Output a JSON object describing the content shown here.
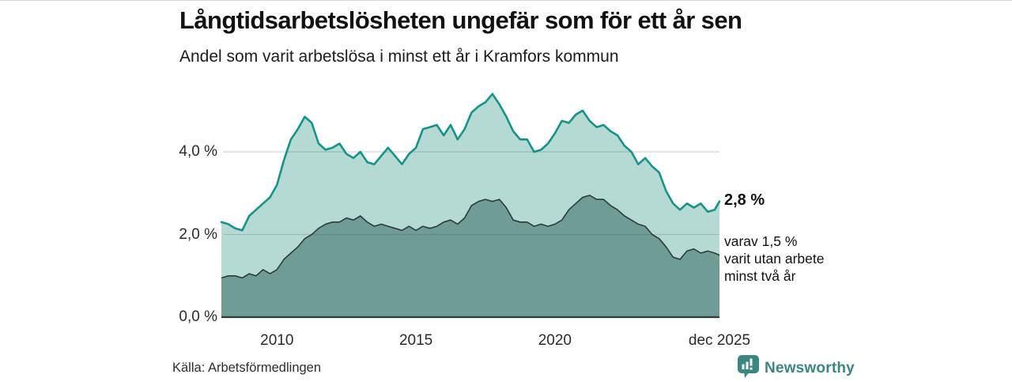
{
  "footer": {
    "source": "Källa: Arbetsförmedlingen",
    "brand": "Newsworthy"
  },
  "colors": {
    "accent_teal": "#149489",
    "light_fill": "#b5dad4",
    "dark_fill": "#6f9d96",
    "dark_line": "#2f3b3a",
    "brand_teal": "#3a8680",
    "gridline": "rgba(70,70,70,0.22)"
  },
  "chart_data": {
    "type": "area",
    "title": "Långtidsarbetslösheten ungefär som för ett år sen",
    "subtitle": "Andel som varit arbetslösa i minst ett år i Kramfors kommun",
    "unit": "%",
    "grid": "horizontal",
    "legend_position": "none",
    "annotations": {
      "latest_total": "2,8 %",
      "latest_secondary": [
        "varav 1,5 %",
        "varit utan arbete",
        "minst två år"
      ]
    },
    "x_axis": {
      "start": 2008.0,
      "end": 2025.92,
      "ticks": [
        {
          "label": "2010",
          "year": 2010
        },
        {
          "label": "2015",
          "year": 2015
        },
        {
          "label": "2020",
          "year": 2020
        },
        {
          "label": "dec 2025",
          "year": 2025.92
        }
      ]
    },
    "y_axis": {
      "ticks": [
        {
          "label": "0,0 %",
          "value": 0
        },
        {
          "label": "2,0 %",
          "value": 2
        },
        {
          "label": "4,0 %",
          "value": 4
        }
      ],
      "range": [
        0,
        5.6
      ]
    },
    "series": [
      {
        "name": "Andel arbetslösa minst ett år",
        "color": "#149489",
        "fill": "#b5dad4",
        "latest_value": 2.8,
        "points": [
          [
            2008.0,
            2.3
          ],
          [
            2008.25,
            2.25
          ],
          [
            2008.5,
            2.15
          ],
          [
            2008.75,
            2.1
          ],
          [
            2009.0,
            2.45
          ],
          [
            2009.25,
            2.6
          ],
          [
            2009.5,
            2.75
          ],
          [
            2009.75,
            2.9
          ],
          [
            2010.0,
            3.2
          ],
          [
            2010.25,
            3.8
          ],
          [
            2010.5,
            4.3
          ],
          [
            2010.75,
            4.55
          ],
          [
            2011.0,
            4.85
          ],
          [
            2011.25,
            4.7
          ],
          [
            2011.5,
            4.2
          ],
          [
            2011.75,
            4.05
          ],
          [
            2012.0,
            4.1
          ],
          [
            2012.25,
            4.2
          ],
          [
            2012.5,
            3.95
          ],
          [
            2012.75,
            3.85
          ],
          [
            2013.0,
            4.0
          ],
          [
            2013.25,
            3.75
          ],
          [
            2013.5,
            3.7
          ],
          [
            2013.75,
            3.9
          ],
          [
            2014.0,
            4.1
          ],
          [
            2014.25,
            3.9
          ],
          [
            2014.5,
            3.7
          ],
          [
            2014.75,
            3.95
          ],
          [
            2015.0,
            4.1
          ],
          [
            2015.25,
            4.55
          ],
          [
            2015.5,
            4.6
          ],
          [
            2015.75,
            4.65
          ],
          [
            2016.0,
            4.4
          ],
          [
            2016.25,
            4.65
          ],
          [
            2016.5,
            4.3
          ],
          [
            2016.75,
            4.55
          ],
          [
            2017.0,
            4.95
          ],
          [
            2017.25,
            5.1
          ],
          [
            2017.5,
            5.2
          ],
          [
            2017.75,
            5.4
          ],
          [
            2018.0,
            5.15
          ],
          [
            2018.25,
            4.85
          ],
          [
            2018.5,
            4.5
          ],
          [
            2018.75,
            4.3
          ],
          [
            2019.0,
            4.3
          ],
          [
            2019.25,
            4.0
          ],
          [
            2019.5,
            4.05
          ],
          [
            2019.75,
            4.2
          ],
          [
            2020.0,
            4.45
          ],
          [
            2020.25,
            4.75
          ],
          [
            2020.5,
            4.7
          ],
          [
            2020.75,
            4.9
          ],
          [
            2021.0,
            5.0
          ],
          [
            2021.25,
            4.75
          ],
          [
            2021.5,
            4.6
          ],
          [
            2021.75,
            4.65
          ],
          [
            2022.0,
            4.5
          ],
          [
            2022.25,
            4.4
          ],
          [
            2022.5,
            4.15
          ],
          [
            2022.75,
            4.0
          ],
          [
            2023.0,
            3.7
          ],
          [
            2023.25,
            3.85
          ],
          [
            2023.5,
            3.65
          ],
          [
            2023.75,
            3.5
          ],
          [
            2024.0,
            3.05
          ],
          [
            2024.25,
            2.75
          ],
          [
            2024.5,
            2.6
          ],
          [
            2024.75,
            2.75
          ],
          [
            2025.0,
            2.65
          ],
          [
            2025.25,
            2.75
          ],
          [
            2025.5,
            2.55
          ],
          [
            2025.75,
            2.6
          ],
          [
            2025.92,
            2.8
          ]
        ]
      },
      {
        "name": "varav arbetslösa minst två år",
        "color": "#2f3b3a",
        "fill": "#6f9d96",
        "latest_value": 1.5,
        "points": [
          [
            2008.0,
            0.95
          ],
          [
            2008.25,
            1.0
          ],
          [
            2008.5,
            1.0
          ],
          [
            2008.75,
            0.95
          ],
          [
            2009.0,
            1.05
          ],
          [
            2009.25,
            1.0
          ],
          [
            2009.5,
            1.15
          ],
          [
            2009.75,
            1.05
          ],
          [
            2010.0,
            1.15
          ],
          [
            2010.25,
            1.4
          ],
          [
            2010.5,
            1.55
          ],
          [
            2010.75,
            1.7
          ],
          [
            2011.0,
            1.9
          ],
          [
            2011.25,
            2.0
          ],
          [
            2011.5,
            2.15
          ],
          [
            2011.75,
            2.25
          ],
          [
            2012.0,
            2.3
          ],
          [
            2012.25,
            2.3
          ],
          [
            2012.5,
            2.4
          ],
          [
            2012.75,
            2.35
          ],
          [
            2013.0,
            2.45
          ],
          [
            2013.25,
            2.3
          ],
          [
            2013.5,
            2.2
          ],
          [
            2013.75,
            2.25
          ],
          [
            2014.0,
            2.2
          ],
          [
            2014.25,
            2.15
          ],
          [
            2014.5,
            2.1
          ],
          [
            2014.75,
            2.2
          ],
          [
            2015.0,
            2.1
          ],
          [
            2015.25,
            2.2
          ],
          [
            2015.5,
            2.15
          ],
          [
            2015.75,
            2.2
          ],
          [
            2016.0,
            2.3
          ],
          [
            2016.25,
            2.35
          ],
          [
            2016.5,
            2.25
          ],
          [
            2016.75,
            2.4
          ],
          [
            2017.0,
            2.7
          ],
          [
            2017.25,
            2.8
          ],
          [
            2017.5,
            2.85
          ],
          [
            2017.75,
            2.8
          ],
          [
            2018.0,
            2.85
          ],
          [
            2018.25,
            2.65
          ],
          [
            2018.5,
            2.35
          ],
          [
            2018.75,
            2.3
          ],
          [
            2019.0,
            2.3
          ],
          [
            2019.25,
            2.2
          ],
          [
            2019.5,
            2.25
          ],
          [
            2019.75,
            2.2
          ],
          [
            2020.0,
            2.25
          ],
          [
            2020.25,
            2.35
          ],
          [
            2020.5,
            2.6
          ],
          [
            2020.75,
            2.75
          ],
          [
            2021.0,
            2.9
          ],
          [
            2021.25,
            2.95
          ],
          [
            2021.5,
            2.85
          ],
          [
            2021.75,
            2.85
          ],
          [
            2022.0,
            2.7
          ],
          [
            2022.25,
            2.6
          ],
          [
            2022.5,
            2.45
          ],
          [
            2022.75,
            2.35
          ],
          [
            2023.0,
            2.25
          ],
          [
            2023.25,
            2.2
          ],
          [
            2023.5,
            2.0
          ],
          [
            2023.75,
            1.9
          ],
          [
            2024.0,
            1.7
          ],
          [
            2024.25,
            1.45
          ],
          [
            2024.5,
            1.4
          ],
          [
            2024.75,
            1.6
          ],
          [
            2025.0,
            1.65
          ],
          [
            2025.25,
            1.55
          ],
          [
            2025.5,
            1.6
          ],
          [
            2025.75,
            1.55
          ],
          [
            2025.92,
            1.5
          ]
        ]
      }
    ]
  }
}
